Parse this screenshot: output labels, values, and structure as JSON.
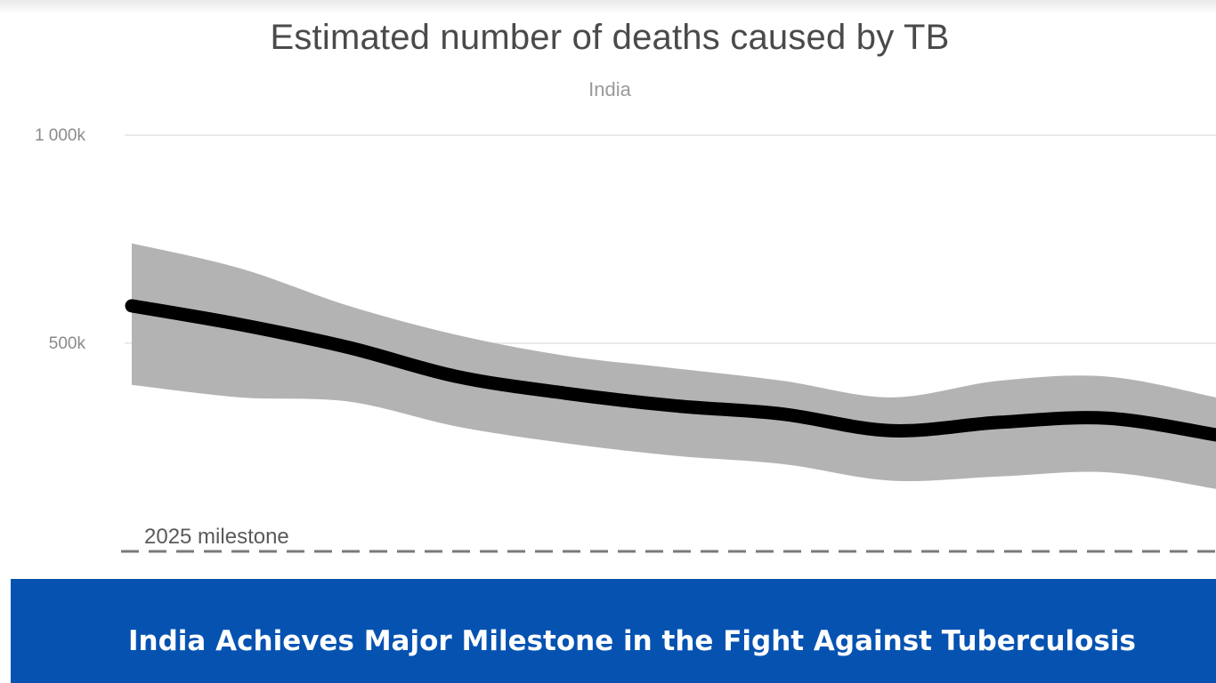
{
  "chart_data": {
    "type": "area",
    "title": "Estimated number of deaths caused by TB",
    "subtitle": "India",
    "y_ticks": [
      {
        "value": 1000000,
        "label": "1 000k"
      },
      {
        "value": 500000,
        "label": "500k"
      }
    ],
    "ylim": [
      0,
      1000000
    ],
    "x": [
      0,
      1,
      2,
      3,
      4,
      5,
      6,
      7,
      8,
      9,
      10
    ],
    "series": [
      {
        "values": [
          590000,
          545000,
          490000,
          420000,
          380000,
          350000,
          330000,
          290000,
          310000,
          320000,
          280000
        ]
      }
    ],
    "uncertainty_band": {
      "upper": [
        740000,
        680000,
        590000,
        520000,
        470000,
        440000,
        410000,
        370000,
        410000,
        420000,
        370000
      ],
      "lower": [
        400000,
        370000,
        360000,
        300000,
        260000,
        230000,
        210000,
        170000,
        180000,
        190000,
        150000
      ]
    },
    "reference_line": {
      "value": 0,
      "label": "2025 milestone",
      "style": "dashed"
    },
    "grid": true,
    "colors": {
      "line": "#000000",
      "band": "#b3b3b3",
      "grid": "#eaeaea",
      "reference": "#7a7a7a"
    }
  },
  "banner": {
    "headline": "India Achieves Major Milestone in the Fight Against Tuberculosis",
    "background": "#0552b1"
  }
}
